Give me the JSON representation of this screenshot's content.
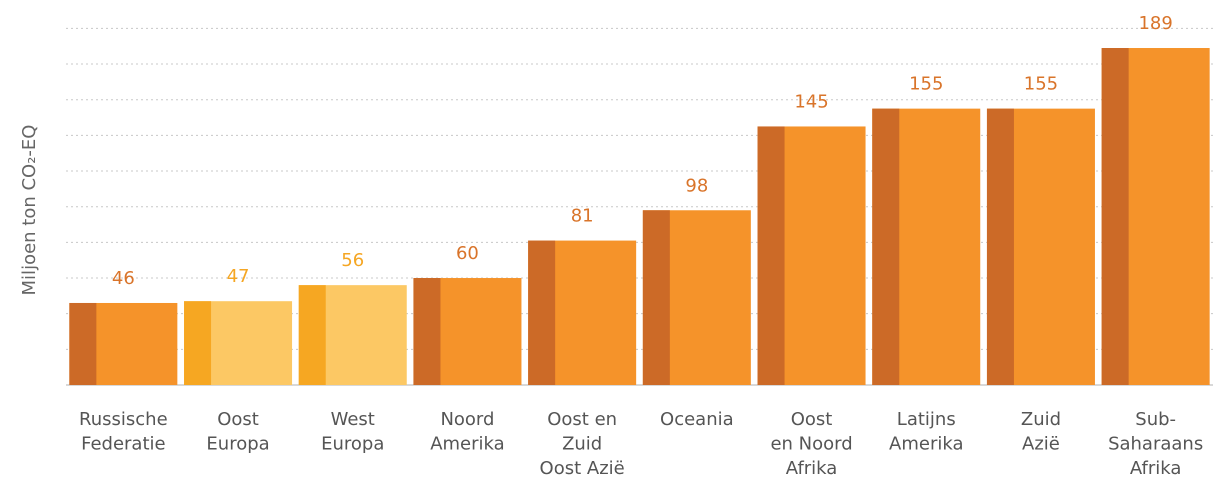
{
  "chart_data": {
    "type": "bar",
    "y_label": "Miljoen ton CO₂-EQ",
    "categories": [
      [
        "Russische",
        "Federatie"
      ],
      [
        "Oost",
        "Europa"
      ],
      [
        "West",
        "Europa"
      ],
      [
        "Noord",
        "Amerika"
      ],
      [
        "Oost en",
        "Zuid",
        "Oost Azië"
      ],
      [
        "Oceania"
      ],
      [
        "Oost",
        "en Noord",
        "Afrika"
      ],
      [
        "Latijns",
        "Amerika"
      ],
      [
        "Zuid",
        "Azië"
      ],
      [
        "Sub-",
        "Saharaans",
        "Afrika"
      ]
    ],
    "values": [
      46,
      47,
      56,
      60,
      81,
      98,
      145,
      155,
      155,
      189
    ],
    "colors": [
      "#f5932a",
      "#fcc864",
      "#fcc864",
      "#f5932a",
      "#f5932a",
      "#f5932a",
      "#f5932a",
      "#f5932a",
      "#f5932a",
      "#f5932a"
    ],
    "accent_colors": [
      "#cc6a27",
      "#f6a722",
      "#f6a722",
      "#cc6a27",
      "#cc6a27",
      "#cc6a27",
      "#cc6a27",
      "#cc6a27",
      "#cc6a27",
      "#cc6a27"
    ],
    "label_colors": [
      "#d9742a",
      "#f5a623",
      "#f5a623",
      "#d9742a",
      "#d9742a",
      "#d9742a",
      "#d9742a",
      "#d9742a",
      "#d9742a",
      "#d9742a"
    ],
    "ylim": [
      0,
      200
    ],
    "yticks": [
      0,
      20,
      40,
      60,
      80,
      100,
      120,
      140,
      160,
      180,
      200
    ],
    "grid": true
  }
}
